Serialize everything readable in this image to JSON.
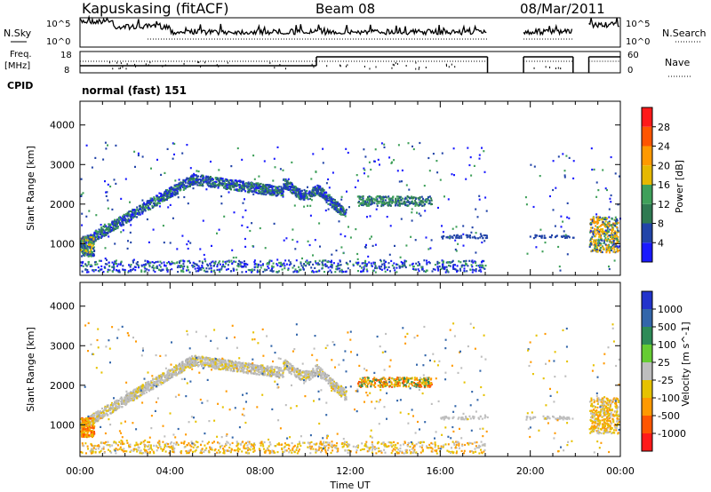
{
  "header": {
    "station": "Kapuskasing (fitACF)",
    "beam": "Beam 08",
    "date": "08/Mar/2011"
  },
  "side_labels": {
    "nsky": "N.Sky",
    "nsearch": "N.Search",
    "freq_top": "Freq.",
    "freq_unit": "[MHz]",
    "nave": "Nave",
    "cpid": "CPID",
    "mode": "normal (fast) 151"
  },
  "top_axes": {
    "nsky_ticks": [
      "10^5",
      "10^0"
    ],
    "nsearch_ticks": [
      "10^5",
      "10^0"
    ],
    "freq_ticks": [
      "18",
      "8"
    ],
    "nave_ticks": [
      "60",
      "0"
    ]
  },
  "colors": {
    "background": "#ffffff",
    "frame": "#000000"
  },
  "chart_data": [
    {
      "type": "heatmap",
      "panel": "power",
      "ylabel": "Slant Range [km]",
      "xlabel": "Time UT",
      "colorbar_label": "Power [dB]",
      "x_ticks": [
        "00:00",
        "04:00",
        "08:00",
        "12:00",
        "16:00",
        "20:00",
        "00:00"
      ],
      "y_ticks": [
        1000,
        2000,
        3000,
        4000
      ],
      "ylim": [
        200,
        4600
      ],
      "xlim_hours": [
        0,
        24
      ],
      "colorbar": {
        "ticks": [
          "4",
          "8",
          "12",
          "16",
          "20",
          "24",
          "28"
        ],
        "colors": [
          "#1a1aff",
          "#2244a8",
          "#2f7a52",
          "#3fa05a",
          "#e6b800",
          "#ff9900",
          "#ff5500",
          "#ff1a1a"
        ]
      },
      "features": [
        {
          "label": "main backscatter band",
          "range_km_start": 1000,
          "range_km_peak": 2650,
          "hours": [
            0,
            9
          ]
        },
        {
          "label": "band tail",
          "range_km": 2300,
          "hours": [
            9,
            12
          ]
        },
        {
          "label": "afternoon echoes",
          "range_km": 2100,
          "hours": [
            12.3,
            15.5
          ]
        },
        {
          "label": "near-range ground scatter",
          "range_km": 400,
          "hours": [
            0,
            18
          ]
        },
        {
          "label": "late echoes",
          "range_km": 1000,
          "hours": [
            22.5,
            24
          ]
        }
      ]
    },
    {
      "type": "heatmap",
      "panel": "velocity",
      "ylabel": "Slant Range [km]",
      "xlabel": "Time UT",
      "colorbar_label": "Velocity [m s^-1]",
      "x_ticks": [
        "00:00",
        "04:00",
        "08:00",
        "12:00",
        "16:00",
        "20:00",
        "00:00"
      ],
      "y_ticks": [
        1000,
        2000,
        3000,
        4000
      ],
      "ylim": [
        200,
        4600
      ],
      "xlim_hours": [
        0,
        24
      ],
      "colorbar": {
        "ticks": [
          "1000",
          "500",
          "100",
          "25",
          "-25",
          "-100",
          "-500",
          "-1000"
        ],
        "colors": [
          "#2233cc",
          "#3366aa",
          "#2e8b57",
          "#66cc33",
          "#bebebe",
          "#e6c200",
          "#ff9900",
          "#ff5500",
          "#ff1a1a"
        ]
      }
    }
  ],
  "timeseries": {
    "nsky_level": "high then low",
    "freq_step_hour": 10.5,
    "gaps_hours": [
      [
        18.1,
        19.7
      ],
      [
        21.9,
        22.6
      ]
    ]
  }
}
